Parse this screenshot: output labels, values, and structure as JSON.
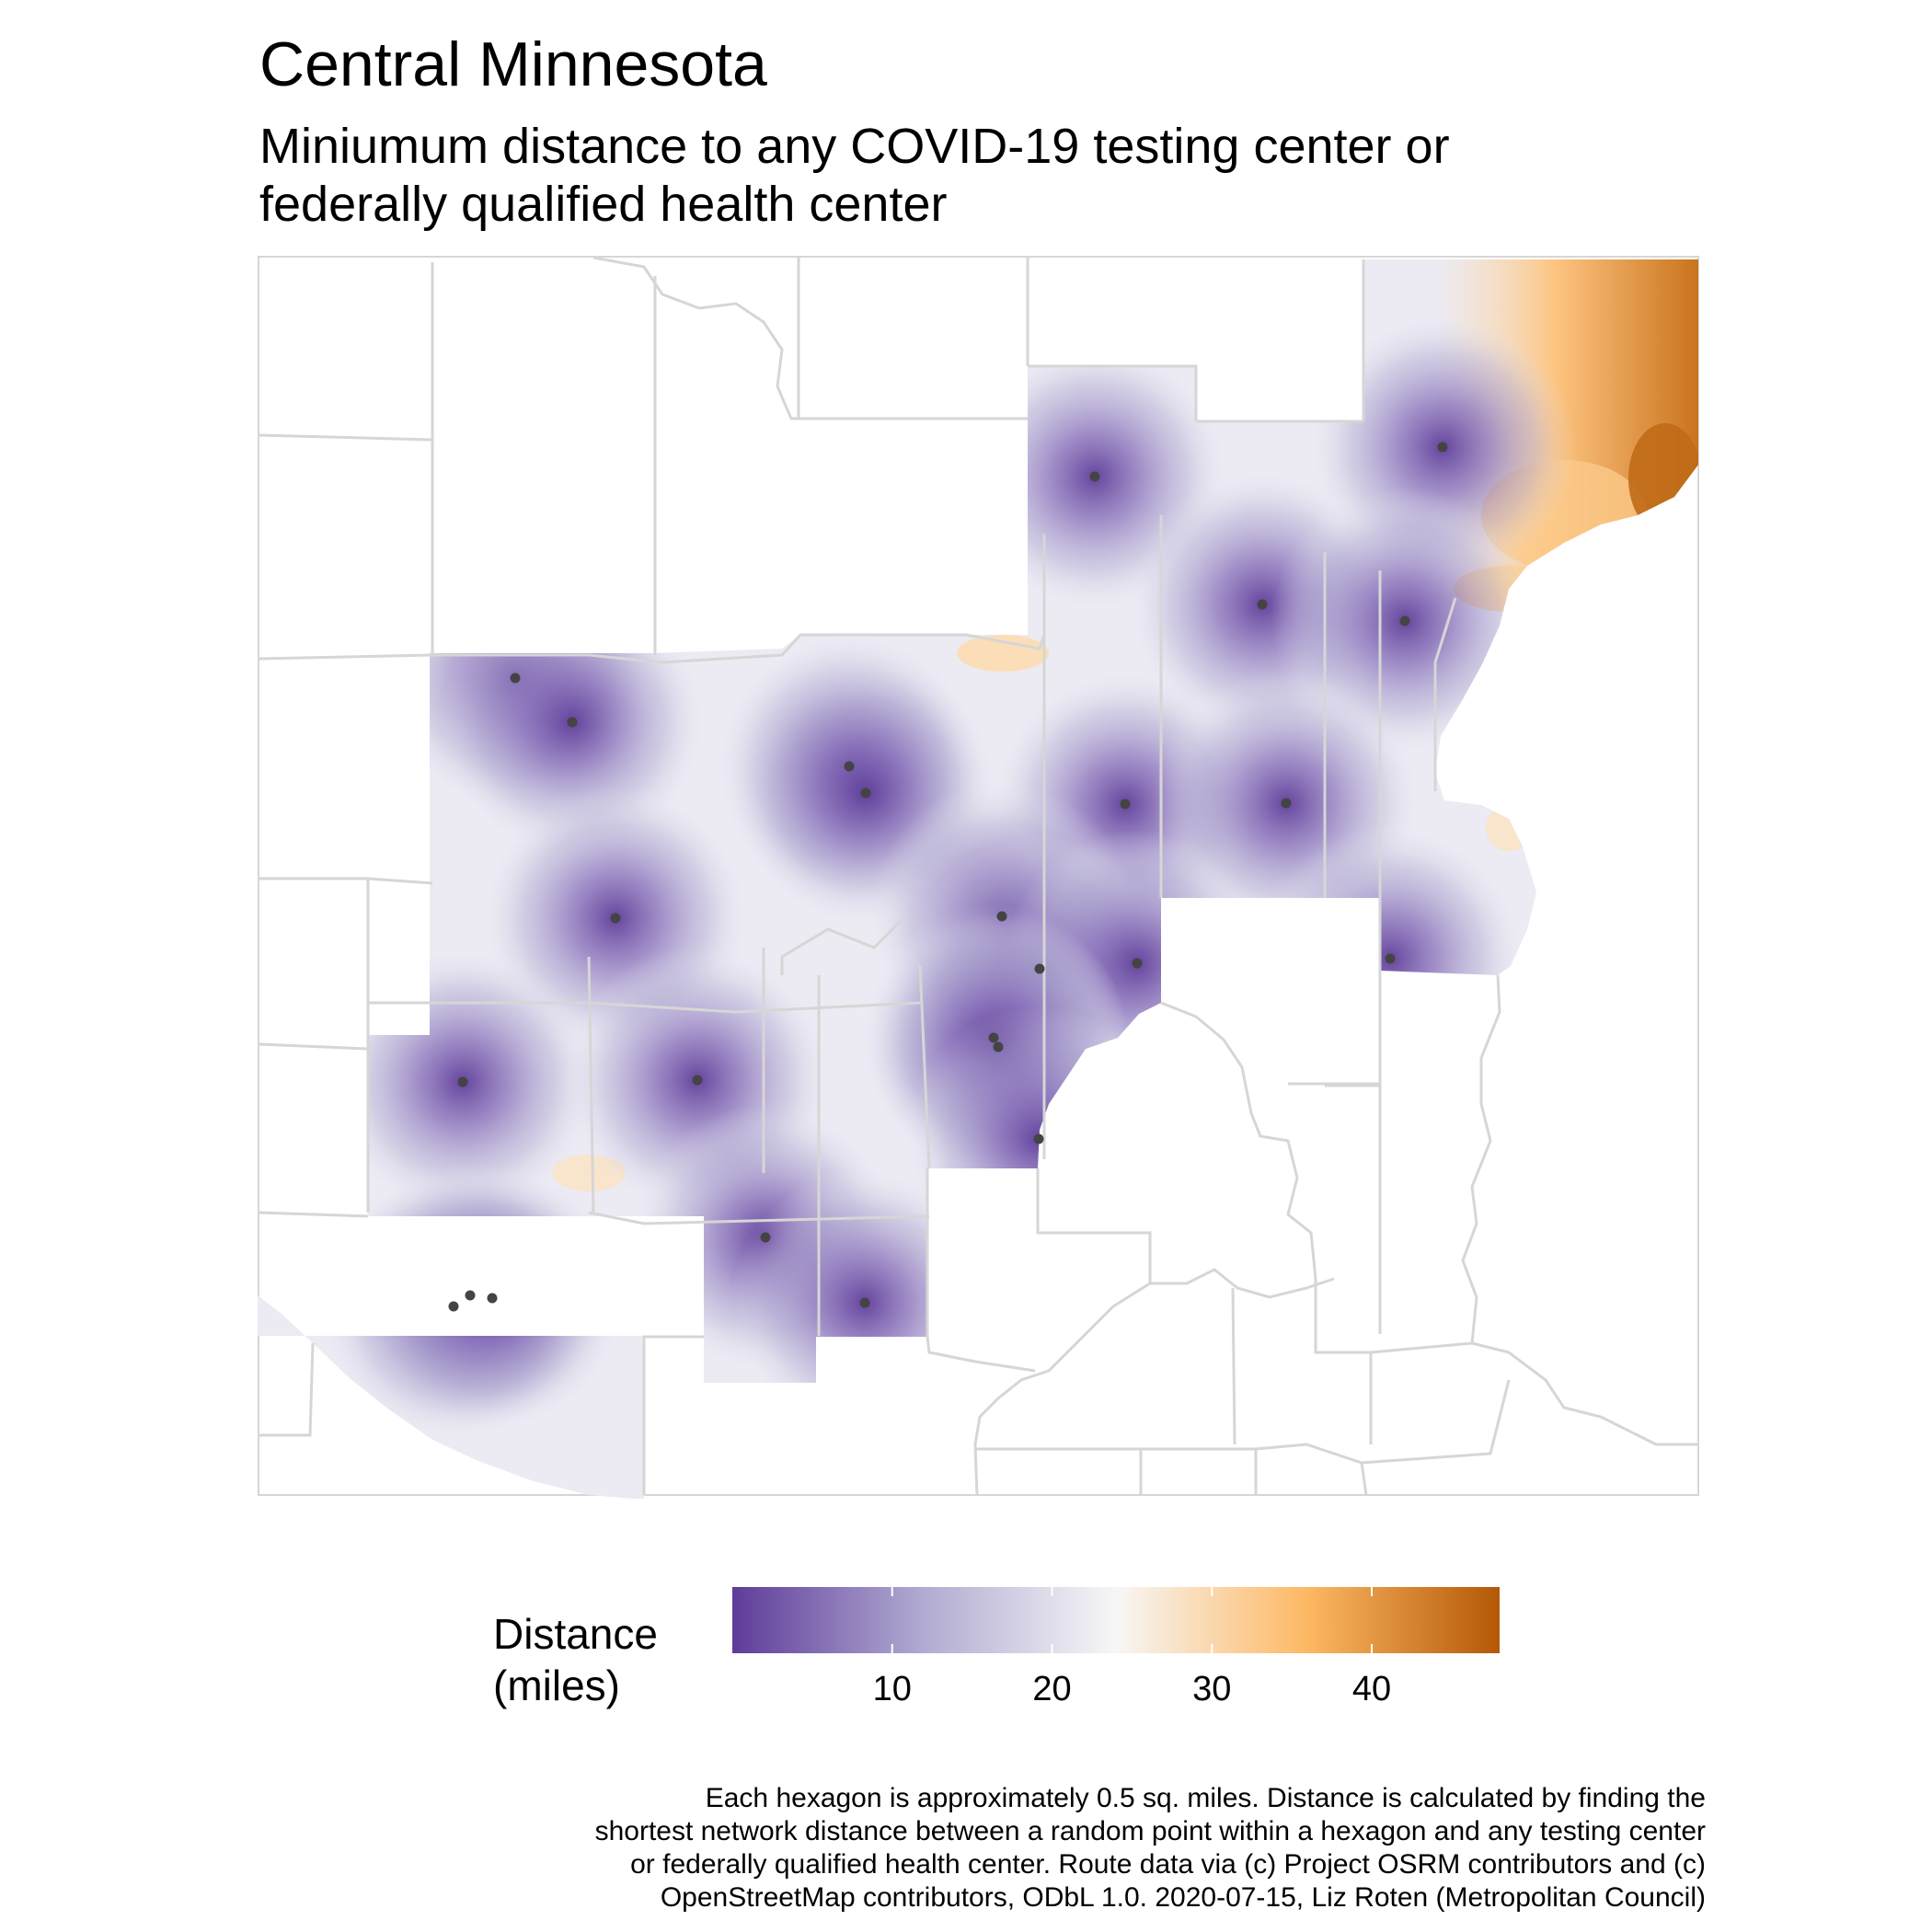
{
  "title": "Central Minnesota",
  "subtitle": [
    "Miniumum distance to any COVID-19 testing center or",
    "federally qualified health center"
  ],
  "legend": {
    "title": [
      "Distance",
      "(miles)"
    ],
    "ticks": [
      10,
      20,
      30,
      40
    ],
    "min": 0,
    "max": 48,
    "colors": [
      "#5e3c99",
      "#b2abd2",
      "#f7f7f7",
      "#fdb863",
      "#b35806"
    ]
  },
  "caption": [
    "Each hexagon is approximately 0.5 sq. miles. Distance is calculated by finding the",
    "shortest network distance between a random point within a hexagon and any testing center",
    "or federally qualified health center. Route data via (c) Project OSRM contributors and (c)",
    "OpenStreetMap contributors, ODbL 1.0. 2020-07-15, Liz Roten (Metropolitan Council)"
  ],
  "colors": {
    "boundary": "#d6d6d6",
    "point": "#444444"
  }
}
